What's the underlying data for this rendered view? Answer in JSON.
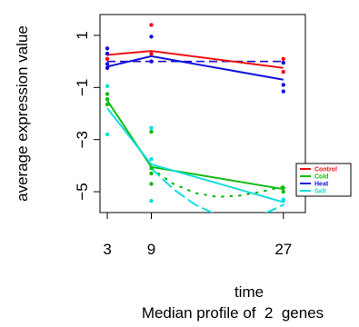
{
  "chart_data": {
    "type": "line",
    "xlabel": "time",
    "ylabel": "average expression value",
    "caption": "Median profile of  2  genes",
    "x_ticks": [
      3,
      9,
      27
    ],
    "y_ticks": [
      1,
      -1,
      -3,
      -5
    ],
    "y_tick_labels": [
      "1",
      "−1",
      "−3",
      "−5"
    ],
    "xlim": [
      2,
      30
    ],
    "ylim": [
      -5.8,
      1.8
    ],
    "legend_position": "bottom-right",
    "series": [
      {
        "name": "Control",
        "color": "#ee1111",
        "x": [
          3,
          9,
          27
        ],
        "median": [
          0.25,
          0.4,
          -0.25
        ],
        "points": [
          [
            3,
            0.3
          ],
          [
            3,
            0.1
          ],
          [
            9,
            1.4
          ],
          [
            9,
            0.3
          ],
          [
            27,
            0.1
          ],
          [
            27,
            -0.4
          ]
        ]
      },
      {
        "name": "Cold",
        "color": "#11bb11",
        "x": [
          3,
          9,
          27
        ],
        "median": [
          -1.5,
          -4.05,
          -4.9
        ],
        "points": [
          [
            3,
            -1.25
          ],
          [
            3,
            -1.45
          ],
          [
            3,
            -1.65
          ],
          [
            9,
            -2.7
          ],
          [
            9,
            -4.1
          ],
          [
            9,
            -4.3
          ],
          [
            9,
            -4.7
          ],
          [
            27,
            -4.85
          ],
          [
            27,
            -5.0
          ]
        ]
      },
      {
        "name": "Heat",
        "color": "#1111dd",
        "x": [
          3,
          9,
          27
        ],
        "median": [
          -0.2,
          0.2,
          -0.7
        ],
        "points": [
          [
            3,
            0.5
          ],
          [
            3,
            0.3
          ],
          [
            3,
            -0.1
          ],
          [
            3,
            -0.25
          ],
          [
            9,
            0.95
          ],
          [
            9,
            0.0
          ],
          [
            27,
            -0.05
          ],
          [
            27,
            -0.9
          ],
          [
            27,
            -1.15
          ]
        ]
      },
      {
        "name": "Salt",
        "color": "#11dddd",
        "x": [
          3,
          9,
          27
        ],
        "median": [
          -1.8,
          -3.95,
          -5.4
        ],
        "points": [
          [
            3,
            -0.95
          ],
          [
            3,
            -2.8
          ],
          [
            9,
            -2.55
          ],
          [
            9,
            -3.75
          ],
          [
            9,
            -5.35
          ],
          [
            27,
            -5.3
          ],
          [
            27,
            -5.35
          ]
        ]
      }
    ],
    "reference_lines": [
      {
        "series": "Control",
        "style": "dashed",
        "x": [
          3,
          27
        ],
        "y": [
          0,
          0
        ]
      },
      {
        "series": "Heat",
        "style": "dashed",
        "x": [
          3,
          27
        ],
        "y": [
          0,
          0
        ]
      }
    ],
    "smooth_curves": [
      {
        "series": "Cold",
        "style": "dotted",
        "x": [
          9,
          12,
          15,
          18,
          21,
          24,
          27
        ],
        "y": [
          -4.1,
          -4.7,
          -5.05,
          -5.2,
          -5.15,
          -5.0,
          -4.8
        ]
      },
      {
        "series": "Salt",
        "style": "dashed",
        "x": [
          9,
          12,
          15,
          18,
          21,
          24,
          27
        ],
        "y": [
          -4.1,
          -4.9,
          -5.5,
          -5.9,
          -6.0,
          -5.9,
          -5.5
        ]
      }
    ]
  }
}
